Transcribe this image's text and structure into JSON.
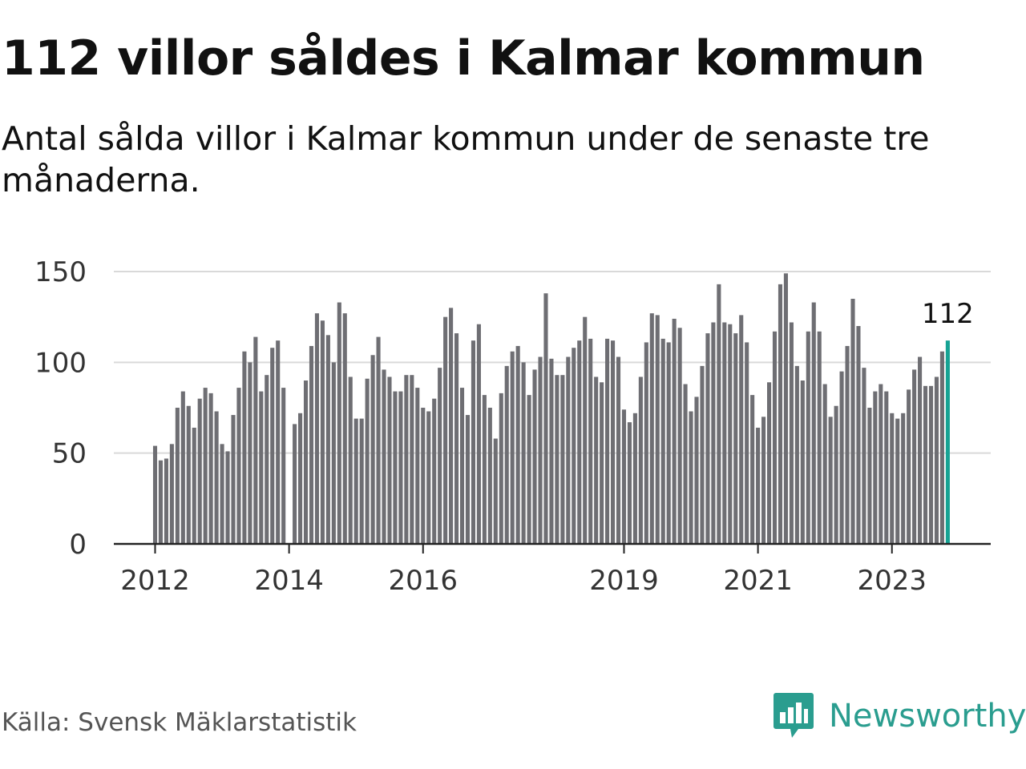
{
  "title": "112 villor såldes i Kalmar kommun",
  "subtitle": "Antal sålda villor i Kalmar kommun under de senaste tre månaderna.",
  "source": "Källa: Svensk Mäklarstatistik",
  "brand": {
    "name": "Newsworthy",
    "icon": "newsworthy-logo-icon"
  },
  "colors": {
    "bar": "#6e6e73",
    "highlight": "#16a394",
    "grid": "#d9d9d9",
    "axis": "#222222",
    "tick_text": "#333333",
    "brand": "#2a9d8f"
  },
  "chart_data": {
    "type": "bar",
    "title": "112 villor såldes i Kalmar kommun",
    "xlabel": "",
    "ylabel": "",
    "ylim": [
      0,
      150
    ],
    "yticks": [
      0,
      50,
      100,
      150
    ],
    "grid": true,
    "x_start": "2012-01",
    "x_tick_labels": [
      {
        "label": "2012",
        "index": 0
      },
      {
        "label": "2014",
        "index": 24
      },
      {
        "label": "2016",
        "index": 48
      },
      {
        "label": "2019",
        "index": 84
      },
      {
        "label": "2021",
        "index": 108
      },
      {
        "label": "2023",
        "index": 132
      }
    ],
    "values": [
      54,
      46,
      47,
      55,
      75,
      84,
      76,
      64,
      80,
      86,
      83,
      73,
      55,
      51,
      71,
      86,
      106,
      100,
      114,
      84,
      93,
      108,
      112,
      86,
      null,
      66,
      72,
      90,
      109,
      127,
      123,
      115,
      100,
      133,
      127,
      92,
      69,
      69,
      91,
      104,
      114,
      96,
      92,
      84,
      84,
      93,
      93,
      86,
      75,
      73,
      80,
      97,
      125,
      130,
      116,
      86,
      71,
      112,
      121,
      82,
      75,
      58,
      83,
      98,
      106,
      109,
      100,
      82,
      96,
      103,
      138,
      102,
      93,
      93,
      103,
      108,
      112,
      125,
      113,
      92,
      89,
      113,
      112,
      103,
      74,
      67,
      72,
      92,
      111,
      127,
      126,
      113,
      111,
      124,
      119,
      88,
      73,
      81,
      98,
      116,
      122,
      143,
      122,
      121,
      116,
      126,
      111,
      82,
      64,
      70,
      89,
      117,
      143,
      149,
      122,
      98,
      90,
      117,
      133,
      117,
      88,
      70,
      76,
      95,
      109,
      135,
      120,
      97,
      75,
      84,
      88,
      84,
      72,
      69,
      72,
      85,
      96,
      103,
      87,
      87,
      92,
      106,
      112
    ],
    "highlight_index": 142,
    "highlight_label": "112"
  }
}
